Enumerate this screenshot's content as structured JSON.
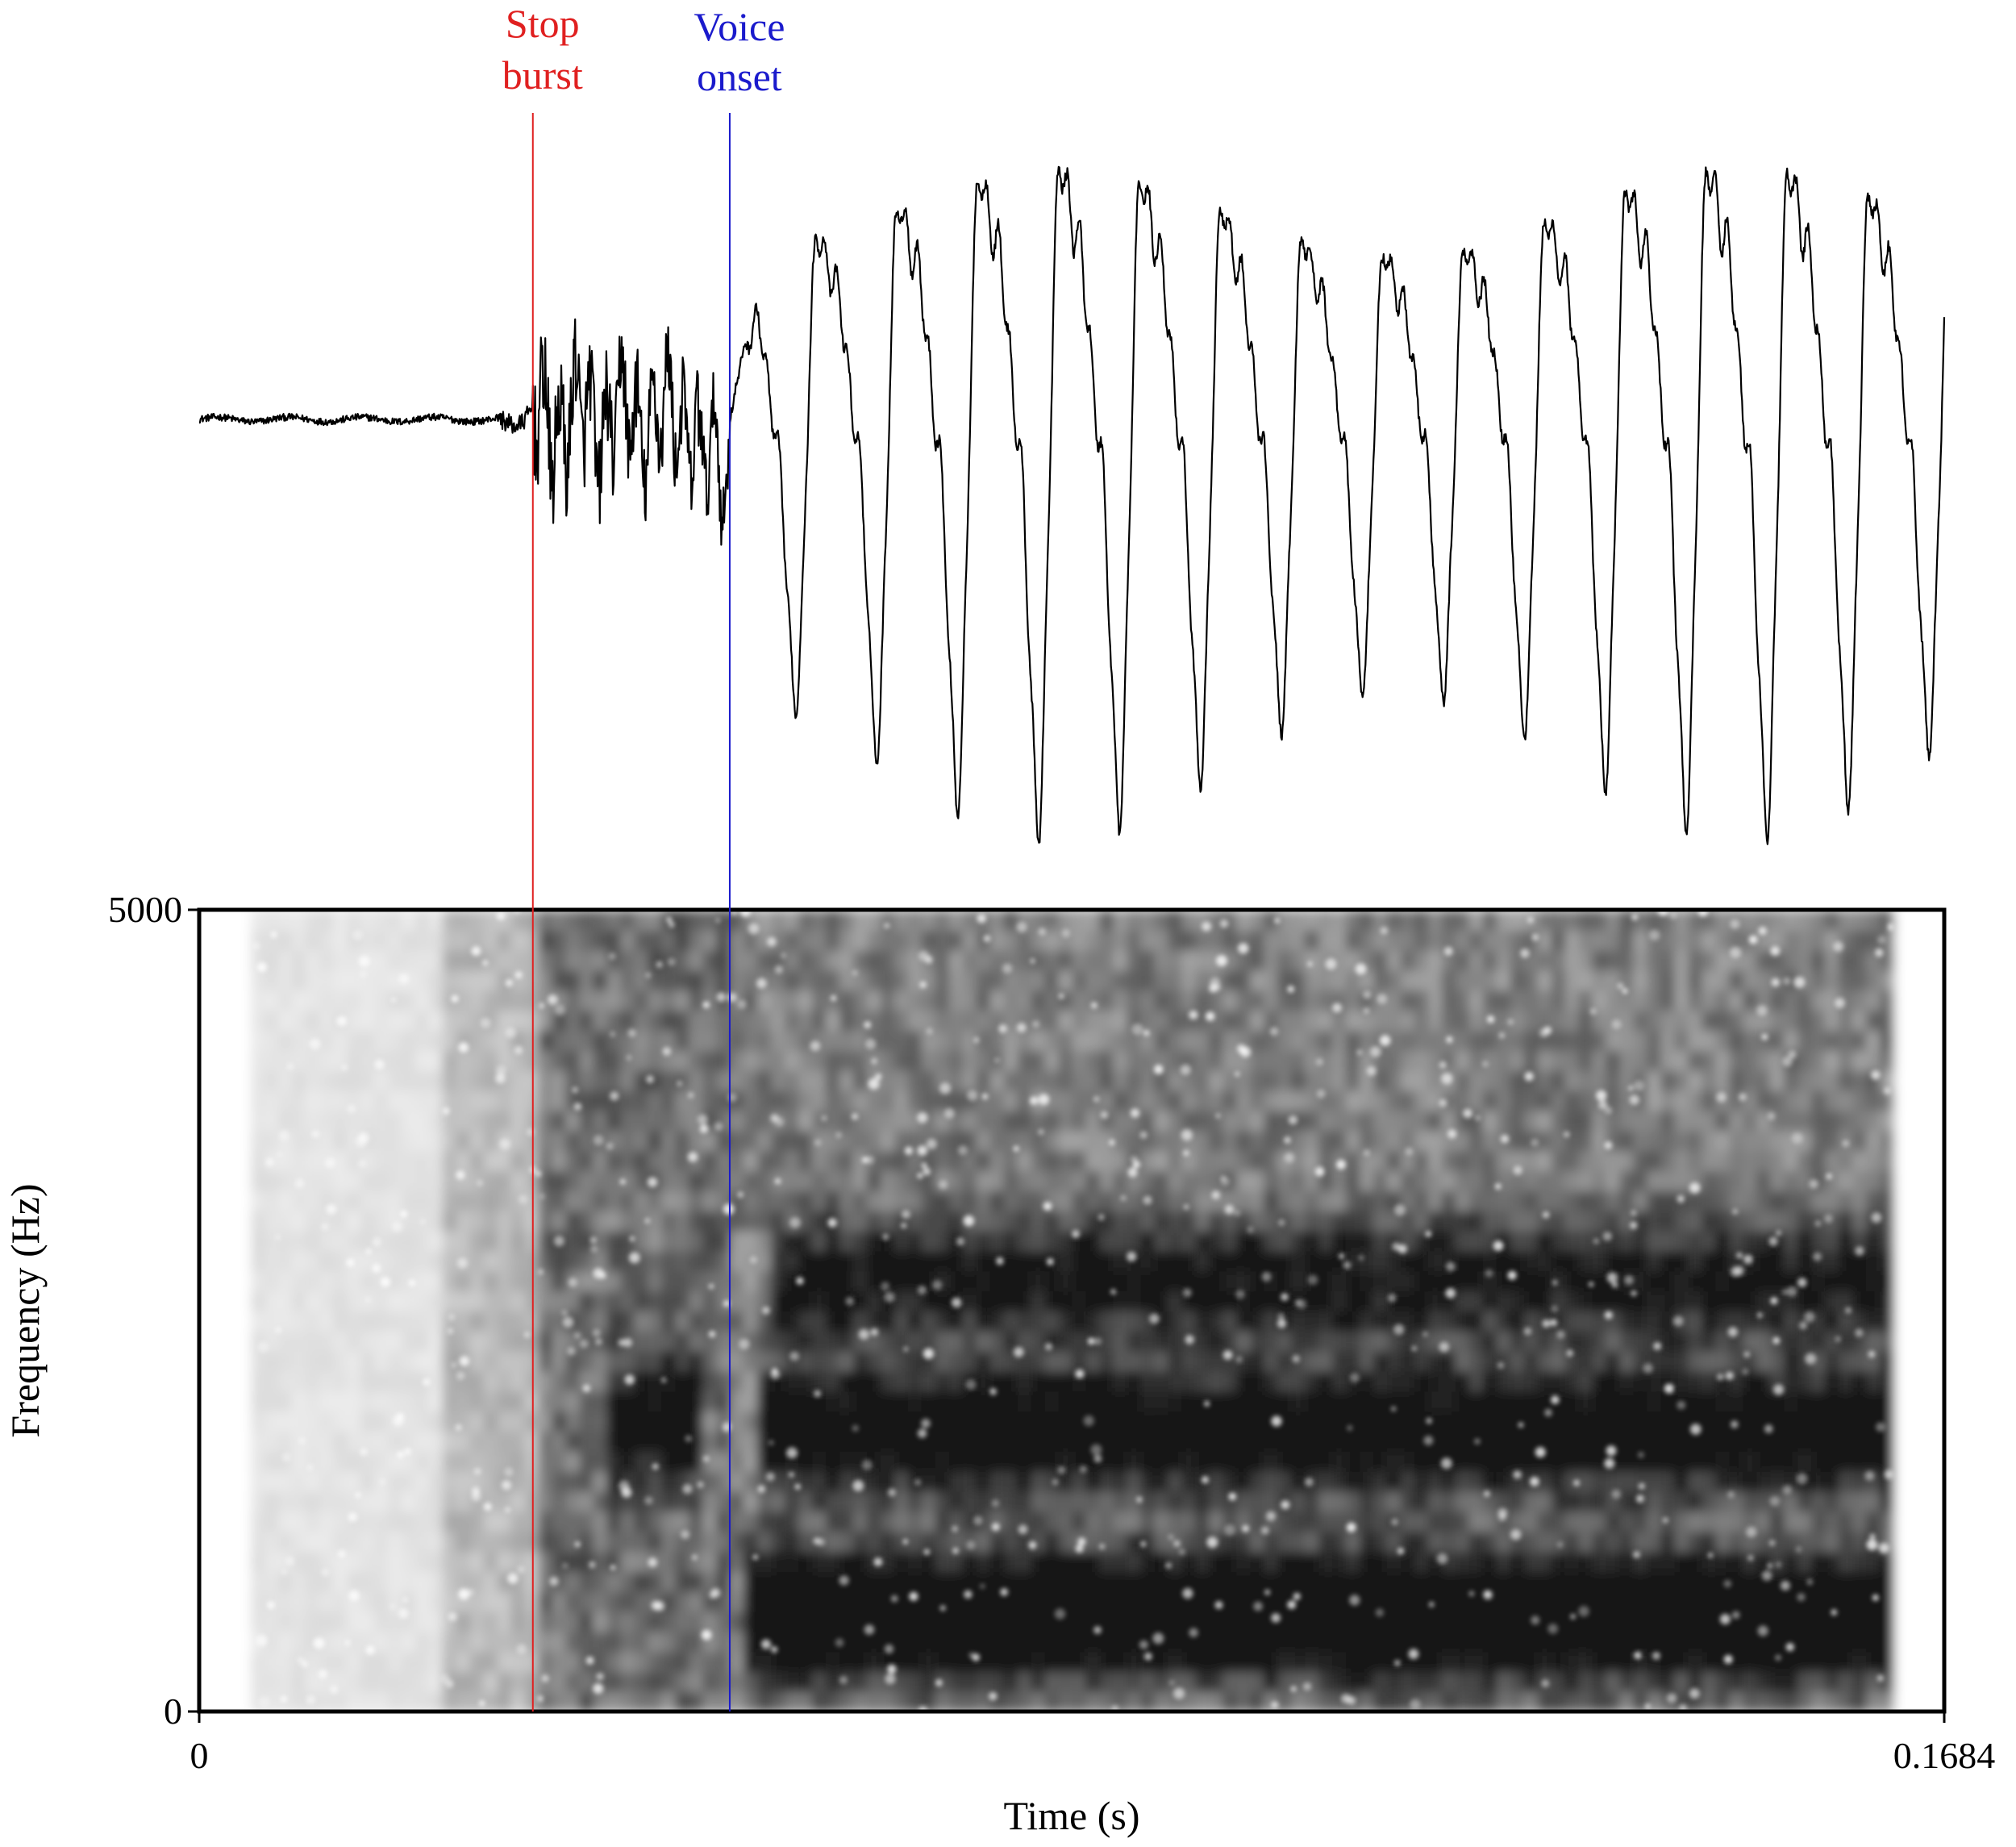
{
  "chart_data": [
    {
      "type": "line",
      "panel": "waveform",
      "description": "Acoustic waveform (amplitude vs time); approximate shape reconstructed",
      "x_range": [
        0,
        0.1684
      ],
      "y_range": [
        -1,
        1
      ],
      "annotations": [
        {
          "text_lines": [
            "Stop",
            "burst"
          ],
          "time": 0.0322,
          "color": "#e02020"
        },
        {
          "text_lines": [
            "Voice",
            "onset"
          ],
          "time": 0.0512,
          "color": "#1a1acc"
        }
      ],
      "segments": {
        "silence_end": 0.029,
        "burst": 0.0322,
        "voicing_start": 0.0512,
        "end": 0.1684
      },
      "line_color": "#000000"
    },
    {
      "type": "heatmap",
      "panel": "spectrogram",
      "colormap": "grayscale (dark = high energy)",
      "x_range": [
        0,
        0.1684
      ],
      "y_range": [
        0,
        5000
      ],
      "ylabel": "Frequency (Hz)",
      "xlabel": "Time (s)",
      "y_ticks": [
        "5000",
        "0"
      ],
      "x_ticks": [
        "0",
        "0.1684"
      ],
      "energy_bands": [
        {
          "name": "low band",
          "freq": 600,
          "from": 0.0525,
          "to": 0.1635,
          "strength": 0.95
        },
        {
          "name": "second band",
          "freq": 1750,
          "from": 0.053,
          "to": 0.1635,
          "strength": 0.7
        },
        {
          "name": "burst band",
          "freq": 1800,
          "from": 0.039,
          "to": 0.048,
          "strength": 0.6
        },
        {
          "name": "mid band",
          "freq": 2700,
          "from": 0.054,
          "to": 0.1635,
          "strength": 0.5
        }
      ],
      "annotation_lines": [
        {
          "time": 0.0322,
          "color": "#e02020"
        },
        {
          "time": 0.0512,
          "color": "#1a1acc"
        }
      ]
    }
  ],
  "colors": {
    "burst": "#e02020",
    "onset": "#1a1acc",
    "axis": "#000000"
  }
}
